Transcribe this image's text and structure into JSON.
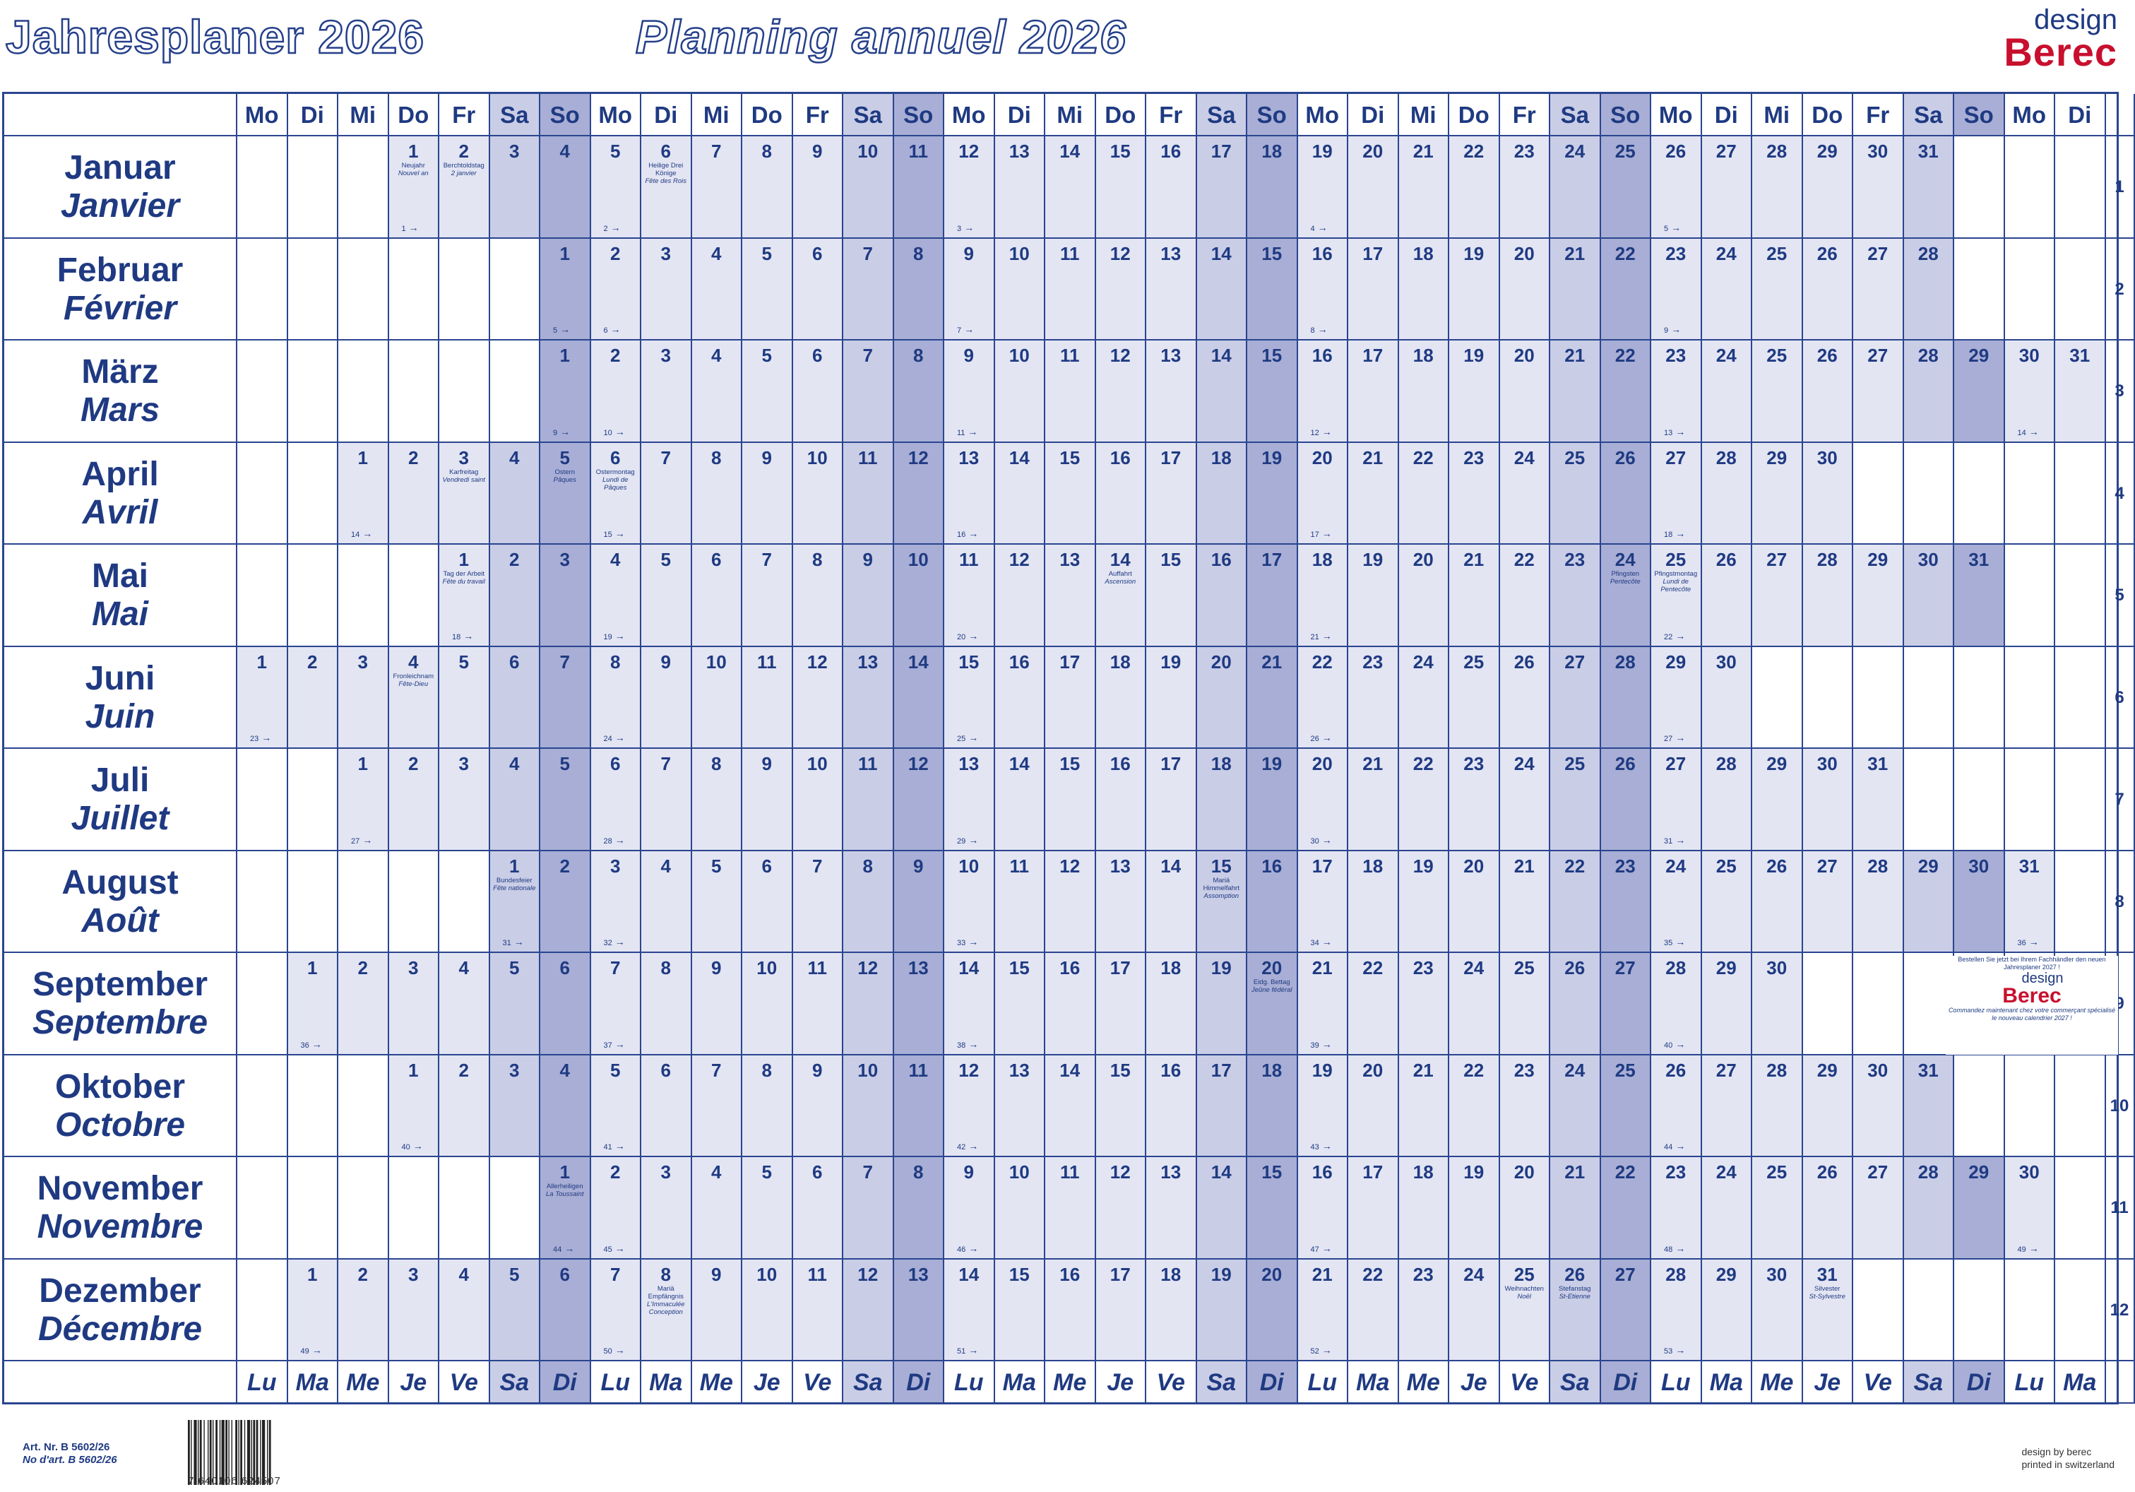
{
  "title_de": "Jahresplaner 2026",
  "title_fr": "Planning annuel 2026",
  "brand": {
    "design": "design",
    "name": "Berec"
  },
  "weekday_header": [
    "Mo",
    "Di",
    "Mi",
    "Do",
    "Fr",
    "Sa",
    "So",
    "Mo",
    "Di",
    "Mi",
    "Do",
    "Fr",
    "Sa",
    "So",
    "Mo",
    "Di",
    "Mi",
    "Do",
    "Fr",
    "Sa",
    "So",
    "Mo",
    "Di",
    "Mi",
    "Do",
    "Fr",
    "Sa",
    "So",
    "Mo",
    "Di",
    "Mi",
    "Do",
    "Fr",
    "Sa",
    "So",
    "Mo",
    "Di"
  ],
  "weekday_footer": [
    "Lu",
    "Ma",
    "Me",
    "Je",
    "Ve",
    "Sa",
    "Di",
    "Lu",
    "Ma",
    "Me",
    "Je",
    "Ve",
    "Sa",
    "Di",
    "Lu",
    "Ma",
    "Me",
    "Je",
    "Ve",
    "Sa",
    "Di",
    "Lu",
    "Ma",
    "Me",
    "Je",
    "Ve",
    "Sa",
    "Di",
    "Lu",
    "Ma",
    "Me",
    "Je",
    "Ve",
    "Sa",
    "Di",
    "Lu",
    "Ma"
  ],
  "months": [
    {
      "de": "Januar",
      "fr": "Janvier",
      "num": "1",
      "start": 3,
      "days": 31,
      "weeks": [
        {
          "day": 1,
          "label": "1"
        },
        {
          "day": 5,
          "label": "2"
        },
        {
          "day": 12,
          "label": "3"
        },
        {
          "day": 19,
          "label": "4"
        },
        {
          "day": 26,
          "label": "5"
        }
      ],
      "holidays": [
        {
          "day": 1,
          "de": "Neujahr",
          "fr": "Nouvel an"
        },
        {
          "day": 2,
          "de": "Berchtoldstag",
          "fr": "2 janvier"
        },
        {
          "day": 6,
          "de": "Heilige Drei Könige",
          "fr": "Fête des Rois"
        }
      ]
    },
    {
      "de": "Februar",
      "fr": "Février",
      "num": "2",
      "start": 6,
      "days": 28,
      "weeks": [
        {
          "day": 1,
          "label": "5"
        },
        {
          "day": 2,
          "label": "6"
        },
        {
          "day": 9,
          "label": "7"
        },
        {
          "day": 16,
          "label": "8"
        },
        {
          "day": 23,
          "label": "9"
        }
      ],
      "holidays": []
    },
    {
      "de": "März",
      "fr": "Mars",
      "num": "3",
      "start": 6,
      "days": 31,
      "weeks": [
        {
          "day": 1,
          "label": "9"
        },
        {
          "day": 2,
          "label": "10"
        },
        {
          "day": 9,
          "label": "11"
        },
        {
          "day": 16,
          "label": "12"
        },
        {
          "day": 23,
          "label": "13"
        },
        {
          "day": 30,
          "label": "14"
        }
      ],
      "holidays": []
    },
    {
      "de": "April",
      "fr": "Avril",
      "num": "4",
      "start": 2,
      "days": 30,
      "weeks": [
        {
          "day": 1,
          "label": "14"
        },
        {
          "day": 6,
          "label": "15"
        },
        {
          "day": 13,
          "label": "16"
        },
        {
          "day": 20,
          "label": "17"
        },
        {
          "day": 27,
          "label": "18"
        }
      ],
      "holidays": [
        {
          "day": 3,
          "de": "Karfreitag",
          "fr": "Vendredi saint"
        },
        {
          "day": 5,
          "de": "Ostern",
          "fr": "Pâques"
        },
        {
          "day": 6,
          "de": "Ostermontag",
          "fr": "Lundi de Pâques"
        }
      ]
    },
    {
      "de": "Mai",
      "fr": "Mai",
      "num": "5",
      "start": 4,
      "days": 31,
      "weeks": [
        {
          "day": 1,
          "label": "18"
        },
        {
          "day": 4,
          "label": "19"
        },
        {
          "day": 11,
          "label": "20"
        },
        {
          "day": 18,
          "label": "21"
        },
        {
          "day": 25,
          "label": "22"
        }
      ],
      "holidays": [
        {
          "day": 1,
          "de": "Tag der Arbeit",
          "fr": "Fête du travail"
        },
        {
          "day": 14,
          "de": "Auffahrt",
          "fr": "Ascension"
        },
        {
          "day": 24,
          "de": "Pfingsten",
          "fr": "Pentecôte"
        },
        {
          "day": 25,
          "de": "Pfingstmontag",
          "fr": "Lundi de Pentecôte"
        }
      ]
    },
    {
      "de": "Juni",
      "fr": "Juin",
      "num": "6",
      "start": 0,
      "days": 30,
      "weeks": [
        {
          "day": 1,
          "label": "23"
        },
        {
          "day": 8,
          "label": "24"
        },
        {
          "day": 15,
          "label": "25"
        },
        {
          "day": 22,
          "label": "26"
        },
        {
          "day": 29,
          "label": "27"
        }
      ],
      "holidays": [
        {
          "day": 4,
          "de": "Fronleichnam",
          "fr": "Fête-Dieu"
        }
      ]
    },
    {
      "de": "Juli",
      "fr": "Juillet",
      "num": "7",
      "start": 2,
      "days": 31,
      "weeks": [
        {
          "day": 1,
          "label": "27"
        },
        {
          "day": 6,
          "label": "28"
        },
        {
          "day": 13,
          "label": "29"
        },
        {
          "day": 20,
          "label": "30"
        },
        {
          "day": 27,
          "label": "31"
        }
      ],
      "holidays": []
    },
    {
      "de": "August",
      "fr": "Août",
      "num": "8",
      "start": 5,
      "days": 31,
      "weeks": [
        {
          "day": 1,
          "label": "31"
        },
        {
          "day": 3,
          "label": "32"
        },
        {
          "day": 10,
          "label": "33"
        },
        {
          "day": 17,
          "label": "34"
        },
        {
          "day": 24,
          "label": "35"
        },
        {
          "day": 31,
          "label": "36"
        }
      ],
      "holidays": [
        {
          "day": 1,
          "de": "Bundesfeier",
          "fr": "Fête nationale"
        },
        {
          "day": 15,
          "de": "Mariä Himmelfahrt",
          "fr": "Assomption"
        }
      ]
    },
    {
      "de": "September",
      "fr": "Septembre",
      "num": "9",
      "start": 1,
      "days": 30,
      "weeks": [
        {
          "day": 1,
          "label": "36"
        },
        {
          "day": 7,
          "label": "37"
        },
        {
          "day": 14,
          "label": "38"
        },
        {
          "day": 21,
          "label": "39"
        },
        {
          "day": 28,
          "label": "40"
        }
      ],
      "holidays": [
        {
          "day": 20,
          "de": "Eidg. Bettag",
          "fr": "Jeûne fédéral"
        }
      ]
    },
    {
      "de": "Oktober",
      "fr": "Octobre",
      "num": "10",
      "start": 3,
      "days": 31,
      "weeks": [
        {
          "day": 1,
          "label": "40"
        },
        {
          "day": 5,
          "label": "41"
        },
        {
          "day": 12,
          "label": "42"
        },
        {
          "day": 19,
          "label": "43"
        },
        {
          "day": 26,
          "label": "44"
        }
      ],
      "holidays": []
    },
    {
      "de": "November",
      "fr": "Novembre",
      "num": "11",
      "start": 6,
      "days": 30,
      "weeks": [
        {
          "day": 1,
          "label": "44"
        },
        {
          "day": 2,
          "label": "45"
        },
        {
          "day": 9,
          "label": "46"
        },
        {
          "day": 16,
          "label": "47"
        },
        {
          "day": 23,
          "label": "48"
        },
        {
          "day": 30,
          "label": "49"
        }
      ],
      "holidays": [
        {
          "day": 1,
          "de": "Allerheiligen",
          "fr": "La Toussaint"
        }
      ]
    },
    {
      "de": "Dezember",
      "fr": "Décembre",
      "num": "12",
      "start": 1,
      "days": 31,
      "weeks": [
        {
          "day": 1,
          "label": "49"
        },
        {
          "day": 7,
          "label": "50"
        },
        {
          "day": 14,
          "label": "51"
        },
        {
          "day": 21,
          "label": "52"
        },
        {
          "day": 28,
          "label": "53"
        }
      ],
      "holidays": [
        {
          "day": 8,
          "de": "Mariä Empfängnis",
          "fr": "L'Immaculée Conception"
        },
        {
          "day": 25,
          "de": "Weihnachten",
          "fr": "Noël"
        },
        {
          "day": 26,
          "de": "Stefanstag",
          "fr": "St-Etienne"
        },
        {
          "day": 31,
          "de": "Silvester",
          "fr": "St-Sylvestre"
        }
      ]
    }
  ],
  "ad": {
    "text_de": "Bestellen Sie jetzt bei Ihrem Fachhändler den neuen Jahresplaner 2027 !",
    "text_fr": "Commandez maintenant chez votre commerçant spécialisé le nouveau calendrier 2027 !",
    "design": "design",
    "brand": "Berec"
  },
  "footer": {
    "art_de": "Art. Nr. B 5602/26",
    "art_fr": "No d'art. B 5602/26",
    "barcode": "7 640106 624507",
    "design_by": "design by berec",
    "printed": "printed in switzerland"
  },
  "colors": {
    "line": "#2a4590",
    "text": "#1f3a82",
    "weekday": "#e3e5f3",
    "saturday": "#c9cde6",
    "sunday": "#a8aed5",
    "brand": "#c8102e"
  }
}
